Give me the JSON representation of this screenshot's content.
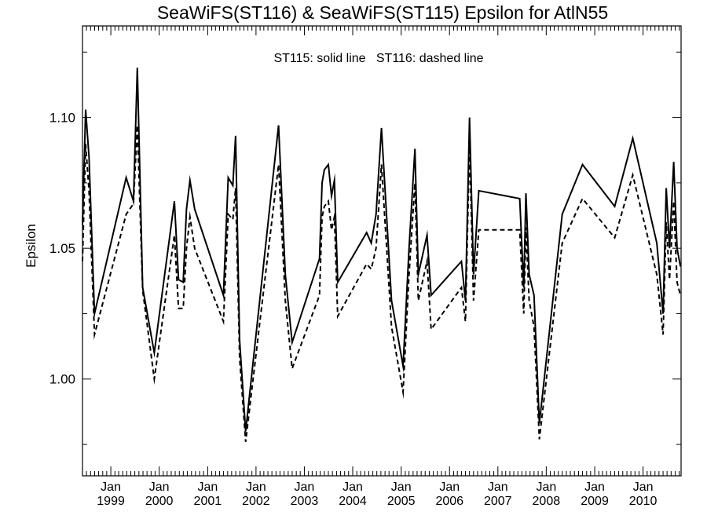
{
  "chart_data": {
    "type": "line",
    "title": "SeaWiFS(ST116) & SeaWiFS(ST115)  Epsilon for AtlN55",
    "annotation": "ST115: solid line   ST116: dashed line",
    "xlabel": "",
    "ylabel": "Epsilon",
    "xlim": [
      "1998-06-01",
      "2010-10-15"
    ],
    "ylim": [
      0.963,
      1.135
    ],
    "yticks": [
      {
        "value": 1.0,
        "label": "1.00"
      },
      {
        "value": 1.05,
        "label": "1.05"
      },
      {
        "value": 1.1,
        "label": "1.10"
      }
    ],
    "xticks": [
      {
        "date": "1999-01-01",
        "month": "Jan",
        "year": "1999"
      },
      {
        "date": "2000-01-01",
        "month": "Jan",
        "year": "2000"
      },
      {
        "date": "2001-01-01",
        "month": "Jan",
        "year": "2001"
      },
      {
        "date": "2002-01-01",
        "month": "Jan",
        "year": "2002"
      },
      {
        "date": "2003-01-01",
        "month": "Jan",
        "year": "2003"
      },
      {
        "date": "2004-01-01",
        "month": "Jan",
        "year": "2004"
      },
      {
        "date": "2005-01-01",
        "month": "Jan",
        "year": "2005"
      },
      {
        "date": "2006-01-01",
        "month": "Jan",
        "year": "2006"
      },
      {
        "date": "2007-01-01",
        "month": "Jan",
        "year": "2007"
      },
      {
        "date": "2008-01-01",
        "month": "Jan",
        "year": "2008"
      },
      {
        "date": "2009-01-01",
        "month": "Jan",
        "year": "2009"
      },
      {
        "date": "2010-01-01",
        "month": "Jan",
        "year": "2010"
      }
    ],
    "grid": false,
    "legend": "none",
    "series": [
      {
        "name": "ST115",
        "style": "solid",
        "color": "#000000",
        "points": [
          [
            "1998-06-01",
            1.059
          ],
          [
            "1998-06-25",
            1.103
          ],
          [
            "1998-07-20",
            1.085
          ],
          [
            "1998-08-31",
            1.025
          ],
          [
            "1999-04-27",
            1.077
          ],
          [
            "1999-06-21",
            1.068
          ],
          [
            "1999-07-20",
            1.119
          ],
          [
            "1999-08-29",
            1.035
          ],
          [
            "1999-11-25",
            1.01
          ],
          [
            "2000-04-25",
            1.068
          ],
          [
            "2000-05-26",
            1.038
          ],
          [
            "2000-06-30",
            1.037
          ],
          [
            "2000-07-25",
            1.065
          ],
          [
            "2000-08-20",
            1.076
          ],
          [
            "2000-09-25",
            1.065
          ],
          [
            "2001-04-30",
            1.032
          ],
          [
            "2001-06-05",
            1.077
          ],
          [
            "2001-07-10",
            1.074
          ],
          [
            "2001-07-31",
            1.093
          ],
          [
            "2001-08-30",
            1.015
          ],
          [
            "2001-10-15",
            0.98
          ],
          [
            "2002-06-20",
            1.097
          ],
          [
            "2002-08-10",
            1.04
          ],
          [
            "2002-10-01",
            1.014
          ],
          [
            "2003-04-25",
            1.046
          ],
          [
            "2003-05-15",
            1.075
          ],
          [
            "2003-06-01",
            1.08
          ],
          [
            "2003-07-01",
            1.082
          ],
          [
            "2003-07-25",
            1.07
          ],
          [
            "2003-08-16",
            1.076
          ],
          [
            "2003-09-10",
            1.037
          ],
          [
            "2004-04-15",
            1.056
          ],
          [
            "2004-05-20",
            1.052
          ],
          [
            "2004-06-25",
            1.063
          ],
          [
            "2004-08-05",
            1.096
          ],
          [
            "2004-10-20",
            1.03
          ],
          [
            "2005-01-15",
            1.005
          ],
          [
            "2005-03-01",
            1.05
          ],
          [
            "2005-04-15",
            1.088
          ],
          [
            "2005-05-10",
            1.04
          ],
          [
            "2005-07-15",
            1.055
          ],
          [
            "2005-08-15",
            1.032
          ],
          [
            "2006-04-01",
            1.045
          ],
          [
            "2006-05-01",
            1.03
          ],
          [
            "2006-06-01",
            1.1
          ],
          [
            "2006-07-01",
            1.04
          ],
          [
            "2006-08-10",
            1.072
          ],
          [
            "2007-06-15",
            1.069
          ],
          [
            "2007-07-15",
            1.035
          ],
          [
            "2007-08-01",
            1.071
          ],
          [
            "2007-08-25",
            1.04
          ],
          [
            "2007-10-01",
            1.032
          ],
          [
            "2007-11-10",
            0.983
          ],
          [
            "2008-05-01",
            1.063
          ],
          [
            "2008-10-01",
            1.082
          ],
          [
            "2009-06-01",
            1.066
          ],
          [
            "2009-10-15",
            1.092
          ],
          [
            "2010-04-15",
            1.052
          ],
          [
            "2010-06-01",
            1.025
          ],
          [
            "2010-06-25",
            1.073
          ],
          [
            "2010-07-20",
            1.05
          ],
          [
            "2010-08-20",
            1.083
          ],
          [
            "2010-09-15",
            1.05
          ],
          [
            "2010-10-10",
            1.043
          ]
        ]
      },
      {
        "name": "ST116",
        "style": "dashed",
        "color": "#000000",
        "points": [
          [
            "1998-06-01",
            1.045
          ],
          [
            "1998-06-25",
            1.09
          ],
          [
            "1998-07-20",
            1.072
          ],
          [
            "1998-08-31",
            1.017
          ],
          [
            "1999-04-27",
            1.063
          ],
          [
            "1999-06-21",
            1.067
          ],
          [
            "1999-07-20",
            1.097
          ],
          [
            "1999-08-29",
            1.034
          ],
          [
            "1999-11-25",
            1.0
          ],
          [
            "2000-04-25",
            1.055
          ],
          [
            "2000-05-26",
            1.027
          ],
          [
            "2000-06-30",
            1.027
          ],
          [
            "2000-07-25",
            1.05
          ],
          [
            "2000-08-20",
            1.062
          ],
          [
            "2000-09-25",
            1.05
          ],
          [
            "2001-04-30",
            1.022
          ],
          [
            "2001-06-05",
            1.063
          ],
          [
            "2001-07-10",
            1.061
          ],
          [
            "2001-07-31",
            1.073
          ],
          [
            "2001-08-30",
            1.008
          ],
          [
            "2001-10-15",
            0.976
          ],
          [
            "2002-06-20",
            1.082
          ],
          [
            "2002-08-10",
            1.03
          ],
          [
            "2002-10-01",
            1.004
          ],
          [
            "2003-04-25",
            1.032
          ],
          [
            "2003-05-15",
            1.062
          ],
          [
            "2003-06-01",
            1.066
          ],
          [
            "2003-07-01",
            1.068
          ],
          [
            "2003-07-25",
            1.057
          ],
          [
            "2003-08-16",
            1.062
          ],
          [
            "2003-09-10",
            1.024
          ],
          [
            "2004-04-15",
            1.044
          ],
          [
            "2004-05-20",
            1.042
          ],
          [
            "2004-06-25",
            1.05
          ],
          [
            "2004-08-05",
            1.082
          ],
          [
            "2004-10-20",
            1.02
          ],
          [
            "2005-01-15",
            0.995
          ],
          [
            "2005-03-01",
            1.04
          ],
          [
            "2005-04-15",
            1.075
          ],
          [
            "2005-05-10",
            1.03
          ],
          [
            "2005-07-15",
            1.045
          ],
          [
            "2005-08-15",
            1.019
          ],
          [
            "2006-04-01",
            1.035
          ],
          [
            "2006-05-01",
            1.022
          ],
          [
            "2006-06-01",
            1.09
          ],
          [
            "2006-07-01",
            1.03
          ],
          [
            "2006-08-10",
            1.057
          ],
          [
            "2007-06-15",
            1.057
          ],
          [
            "2007-07-15",
            1.025
          ],
          [
            "2007-08-01",
            1.058
          ],
          [
            "2007-08-25",
            1.03
          ],
          [
            "2007-10-01",
            1.02
          ],
          [
            "2007-11-10",
            0.977
          ],
          [
            "2008-05-01",
            1.052
          ],
          [
            "2008-10-01",
            1.069
          ],
          [
            "2009-06-01",
            1.054
          ],
          [
            "2009-10-15",
            1.078
          ],
          [
            "2010-04-15",
            1.04
          ],
          [
            "2010-06-01",
            1.017
          ],
          [
            "2010-06-25",
            1.06
          ],
          [
            "2010-07-20",
            1.038
          ],
          [
            "2010-08-20",
            1.068
          ],
          [
            "2010-09-15",
            1.037
          ],
          [
            "2010-10-10",
            1.032
          ]
        ]
      }
    ]
  }
}
